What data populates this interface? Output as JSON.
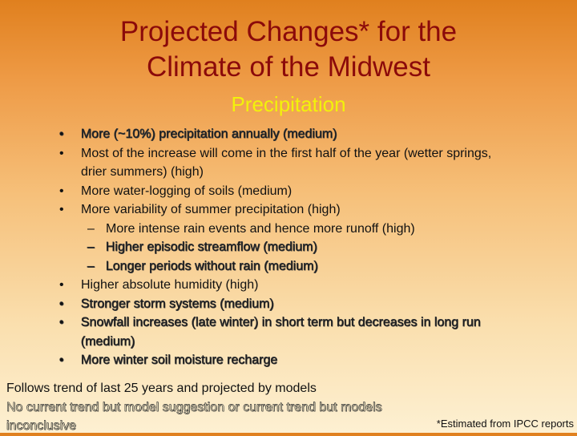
{
  "slide": {
    "title_line1": "Projected Changes* for the",
    "title_line2": "Climate of the Midwest",
    "subtitle": "Precipitation"
  },
  "bullets": [
    {
      "level": 1,
      "marker": "•",
      "text": "More (~10%) precipitation annually (medium)",
      "style": "outlined"
    },
    {
      "level": 1,
      "marker": "•",
      "text": "Most of the increase will come in the first half of the year (wetter springs, drier summers) (high)",
      "style": "solid"
    },
    {
      "level": 1,
      "marker": "•",
      "text": "More water-logging of soils (medium)",
      "style": "solid"
    },
    {
      "level": 1,
      "marker": "•",
      "text": "More variability of summer precipitation (high)",
      "style": "solid"
    },
    {
      "level": 2,
      "marker": "–",
      "text": "More intense rain events and hence more runoff (high)",
      "style": "solid"
    },
    {
      "level": 2,
      "marker": "–",
      "text": "Higher episodic streamflow (medium)",
      "style": "outlined"
    },
    {
      "level": 2,
      "marker": "–",
      "text": "Longer periods without rain (medium)",
      "style": "outlined"
    },
    {
      "level": 1,
      "marker": "•",
      "text": "Higher absolute humidity (high)",
      "style": "solid"
    },
    {
      "level": 1,
      "marker": "•",
      "text": "Stronger storm systems (medium)",
      "style": "outlined"
    },
    {
      "level": 1,
      "marker": "•",
      "text": "Snowfall increases (late winter) in short term but decreases in long run (medium)",
      "style": "outlined"
    },
    {
      "level": 1,
      "marker": "•",
      "text": "More winter soil moisture recharge",
      "style": "outlined"
    }
  ],
  "legend": {
    "solid_line": "Follows trend of last 25 years and projected by models",
    "outlined_line1": "No current trend but model suggestion or current trend but models",
    "outlined_line2": "inconclusive"
  },
  "source_note": "*Estimated from IPCC reports",
  "colors": {
    "title": "#8b0a0a",
    "subtitle": "#f2f20a",
    "background_top": "#e0801e",
    "background_bottom": "#fdf0d2"
  }
}
